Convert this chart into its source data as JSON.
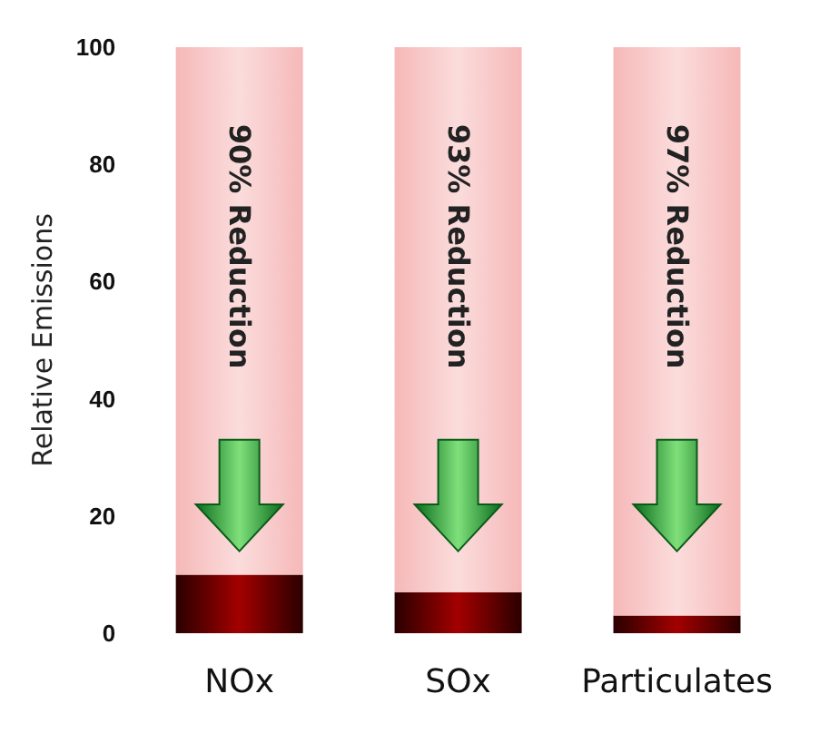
{
  "chart_data": {
    "type": "bar",
    "ylabel": "Relative Emissions",
    "categories": [
      "NOx",
      "SOx",
      "Particulates"
    ],
    "stacked": true,
    "series": [
      {
        "color": "#a30000",
        "values": [
          10,
          7,
          3
        ]
      },
      {
        "color": "#f6b8b8",
        "values": [
          90,
          93,
          97
        ]
      }
    ],
    "ylim": [
      0,
      100
    ],
    "yticks": [
      0,
      20,
      40,
      60,
      80,
      100
    ],
    "annotations": [
      "90% Reduction",
      "93% Reduction",
      "97% Reduction"
    ]
  }
}
